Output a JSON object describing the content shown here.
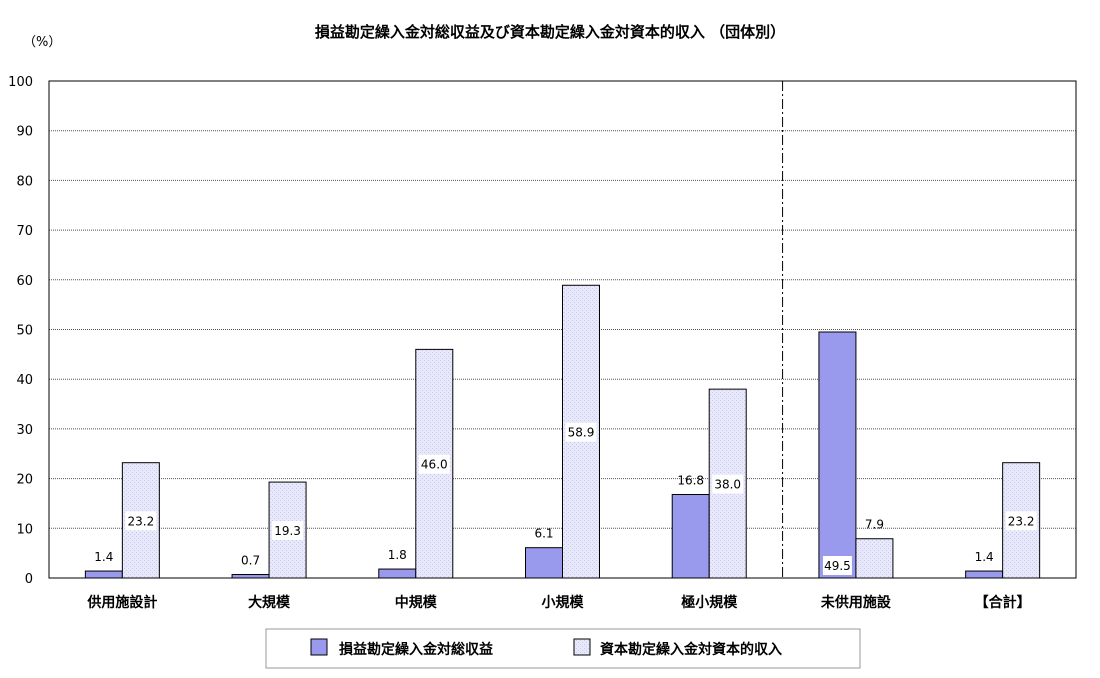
{
  "chart_data": {
    "type": "bar",
    "title": "損益勘定繰入金対総収益及び資本勘定繰入金対資本的収入 （団体別）",
    "unit_label": "（%）",
    "ylim": [
      0,
      100
    ],
    "y_ticks": [
      0,
      10,
      20,
      30,
      40,
      50,
      60,
      70,
      80,
      90,
      100
    ],
    "grid": true,
    "categories": [
      "供用施設計",
      "大規模",
      "中規模",
      "小規模",
      "極小規模",
      "未供用施設",
      "【合計】"
    ],
    "divider_after_category": "極小規模",
    "series": [
      {
        "name": "損益勘定繰入金対総収益",
        "values": [
          1.4,
          0.7,
          1.8,
          6.1,
          16.8,
          49.5,
          1.4
        ],
        "color": "#9999ee"
      },
      {
        "name": "資本勘定繰入金対資本的収入",
        "values": [
          23.2,
          19.3,
          46.0,
          58.9,
          38.0,
          7.9,
          23.2
        ],
        "color": "#e6e6fa"
      }
    ],
    "legend_position": "bottom-center"
  }
}
